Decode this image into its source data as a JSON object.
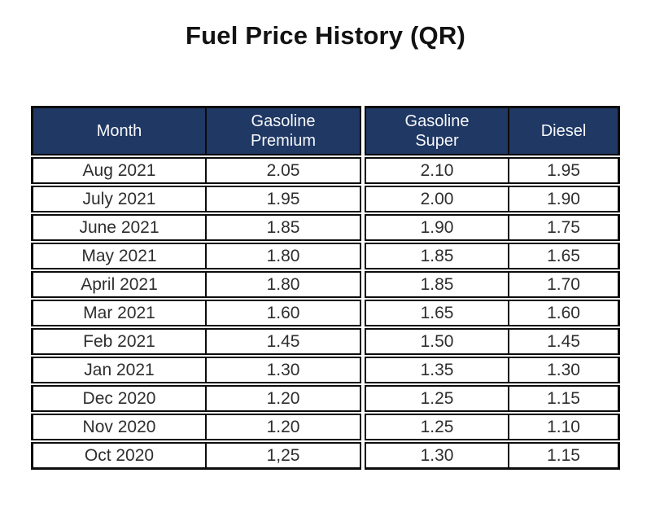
{
  "page": {
    "title": "Fuel Price History (QR)"
  },
  "colors": {
    "header_bg": "#1f3864",
    "header_text": "#f7f8fb",
    "border": "#0b0b0b",
    "body_text": "#2e2e2e"
  },
  "table": {
    "headers": {
      "month": "Month",
      "premium": "Gasoline\nPremium",
      "super": "Gasoline\nSuper",
      "diesel": "Diesel"
    },
    "rows": [
      {
        "month": "Aug 2021",
        "premium": "2.05",
        "super": "2.10",
        "diesel": "1.95"
      },
      {
        "month": "July 2021",
        "premium": "1.95",
        "super": "2.00",
        "diesel": "1.90"
      },
      {
        "month": "June 2021",
        "premium": "1.85",
        "super": "1.90",
        "diesel": "1.75"
      },
      {
        "month": "May 2021",
        "premium": "1.80",
        "super": "1.85",
        "diesel": "1.65"
      },
      {
        "month": "April 2021",
        "premium": "1.80",
        "super": "1.85",
        "diesel": "1.70"
      },
      {
        "month": "Mar 2021",
        "premium": "1.60",
        "super": "1.65",
        "diesel": "1.60"
      },
      {
        "month": "Feb 2021",
        "premium": "1.45",
        "super": "1.50",
        "diesel": "1.45"
      },
      {
        "month": "Jan 2021",
        "premium": "1.30",
        "super": "1.35",
        "diesel": "1.30"
      },
      {
        "month": "Dec 2020",
        "premium": "1.20",
        "super": "1.25",
        "diesel": "1.15"
      },
      {
        "month": "Nov 2020",
        "premium": "1.20",
        "super": "1.25",
        "diesel": "1.10"
      },
      {
        "month": "Oct 2020",
        "premium": "1,25",
        "super": "1.30",
        "diesel": "1.15"
      }
    ]
  }
}
